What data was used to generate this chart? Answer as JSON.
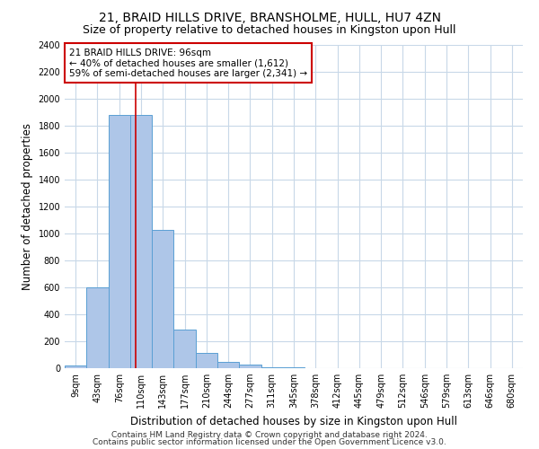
{
  "title1": "21, BRAID HILLS DRIVE, BRANSHOLME, HULL, HU7 4ZN",
  "title2": "Size of property relative to detached houses in Kingston upon Hull",
  "xlabel": "Distribution of detached houses by size in Kingston upon Hull",
  "ylabel": "Number of detached properties",
  "bin_labels": [
    "9sqm",
    "43sqm",
    "76sqm",
    "110sqm",
    "143sqm",
    "177sqm",
    "210sqm",
    "244sqm",
    "277sqm",
    "311sqm",
    "345sqm",
    "378sqm",
    "412sqm",
    "445sqm",
    "479sqm",
    "512sqm",
    "546sqm",
    "579sqm",
    "613sqm",
    "646sqm",
    "680sqm"
  ],
  "bar_heights": [
    20,
    600,
    1880,
    1880,
    1030,
    285,
    115,
    50,
    30,
    10,
    5,
    3,
    2,
    1,
    1,
    0,
    0,
    0,
    0,
    0,
    0
  ],
  "bar_color": "#aec6e8",
  "bar_edgecolor": "#5a9fd4",
  "property_line_x": 2.75,
  "property_line_color": "#cc0000",
  "annotation_text": "21 BRAID HILLS DRIVE: 96sqm\n← 40% of detached houses are smaller (1,612)\n59% of semi-detached houses are larger (2,341) →",
  "annotation_box_color": "#cc0000",
  "ylim": [
    0,
    2400
  ],
  "yticks": [
    0,
    200,
    400,
    600,
    800,
    1000,
    1200,
    1400,
    1600,
    1800,
    2000,
    2200,
    2400
  ],
  "footer1": "Contains HM Land Registry data © Crown copyright and database right 2024.",
  "footer2": "Contains public sector information licensed under the Open Government Licence v3.0.",
  "bg_color": "#ffffff",
  "grid_color": "#c8d8e8",
  "title1_fontsize": 10,
  "title2_fontsize": 9,
  "xlabel_fontsize": 8.5,
  "ylabel_fontsize": 8.5,
  "annotation_fontsize": 7.5,
  "tick_fontsize": 7,
  "footer_fontsize": 6.5
}
